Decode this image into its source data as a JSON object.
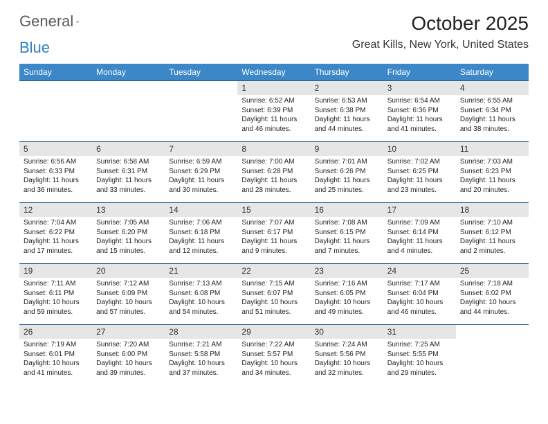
{
  "logo": {
    "text_general": "General",
    "text_blue": "Blue"
  },
  "title": "October 2025",
  "location": "Great Kills, New York, United States",
  "colors": {
    "header_bg": "#3b87c8",
    "header_text": "#ffffff",
    "date_bg": "#e6e6e6",
    "border": "#2b5f8f",
    "body_text": "#222222"
  },
  "day_headers": [
    "Sunday",
    "Monday",
    "Tuesday",
    "Wednesday",
    "Thursday",
    "Friday",
    "Saturday"
  ],
  "weeks": [
    [
      {
        "n": "",
        "sunrise": "",
        "sunset": "",
        "daylight": ""
      },
      {
        "n": "",
        "sunrise": "",
        "sunset": "",
        "daylight": ""
      },
      {
        "n": "",
        "sunrise": "",
        "sunset": "",
        "daylight": ""
      },
      {
        "n": "1",
        "sunrise": "Sunrise: 6:52 AM",
        "sunset": "Sunset: 6:39 PM",
        "daylight": "Daylight: 11 hours and 46 minutes."
      },
      {
        "n": "2",
        "sunrise": "Sunrise: 6:53 AM",
        "sunset": "Sunset: 6:38 PM",
        "daylight": "Daylight: 11 hours and 44 minutes."
      },
      {
        "n": "3",
        "sunrise": "Sunrise: 6:54 AM",
        "sunset": "Sunset: 6:36 PM",
        "daylight": "Daylight: 11 hours and 41 minutes."
      },
      {
        "n": "4",
        "sunrise": "Sunrise: 6:55 AM",
        "sunset": "Sunset: 6:34 PM",
        "daylight": "Daylight: 11 hours and 38 minutes."
      }
    ],
    [
      {
        "n": "5",
        "sunrise": "Sunrise: 6:56 AM",
        "sunset": "Sunset: 6:33 PM",
        "daylight": "Daylight: 11 hours and 36 minutes."
      },
      {
        "n": "6",
        "sunrise": "Sunrise: 6:58 AM",
        "sunset": "Sunset: 6:31 PM",
        "daylight": "Daylight: 11 hours and 33 minutes."
      },
      {
        "n": "7",
        "sunrise": "Sunrise: 6:59 AM",
        "sunset": "Sunset: 6:29 PM",
        "daylight": "Daylight: 11 hours and 30 minutes."
      },
      {
        "n": "8",
        "sunrise": "Sunrise: 7:00 AM",
        "sunset": "Sunset: 6:28 PM",
        "daylight": "Daylight: 11 hours and 28 minutes."
      },
      {
        "n": "9",
        "sunrise": "Sunrise: 7:01 AM",
        "sunset": "Sunset: 6:26 PM",
        "daylight": "Daylight: 11 hours and 25 minutes."
      },
      {
        "n": "10",
        "sunrise": "Sunrise: 7:02 AM",
        "sunset": "Sunset: 6:25 PM",
        "daylight": "Daylight: 11 hours and 23 minutes."
      },
      {
        "n": "11",
        "sunrise": "Sunrise: 7:03 AM",
        "sunset": "Sunset: 6:23 PM",
        "daylight": "Daylight: 11 hours and 20 minutes."
      }
    ],
    [
      {
        "n": "12",
        "sunrise": "Sunrise: 7:04 AM",
        "sunset": "Sunset: 6:22 PM",
        "daylight": "Daylight: 11 hours and 17 minutes."
      },
      {
        "n": "13",
        "sunrise": "Sunrise: 7:05 AM",
        "sunset": "Sunset: 6:20 PM",
        "daylight": "Daylight: 11 hours and 15 minutes."
      },
      {
        "n": "14",
        "sunrise": "Sunrise: 7:06 AM",
        "sunset": "Sunset: 6:18 PM",
        "daylight": "Daylight: 11 hours and 12 minutes."
      },
      {
        "n": "15",
        "sunrise": "Sunrise: 7:07 AM",
        "sunset": "Sunset: 6:17 PM",
        "daylight": "Daylight: 11 hours and 9 minutes."
      },
      {
        "n": "16",
        "sunrise": "Sunrise: 7:08 AM",
        "sunset": "Sunset: 6:15 PM",
        "daylight": "Daylight: 11 hours and 7 minutes."
      },
      {
        "n": "17",
        "sunrise": "Sunrise: 7:09 AM",
        "sunset": "Sunset: 6:14 PM",
        "daylight": "Daylight: 11 hours and 4 minutes."
      },
      {
        "n": "18",
        "sunrise": "Sunrise: 7:10 AM",
        "sunset": "Sunset: 6:12 PM",
        "daylight": "Daylight: 11 hours and 2 minutes."
      }
    ],
    [
      {
        "n": "19",
        "sunrise": "Sunrise: 7:11 AM",
        "sunset": "Sunset: 6:11 PM",
        "daylight": "Daylight: 10 hours and 59 minutes."
      },
      {
        "n": "20",
        "sunrise": "Sunrise: 7:12 AM",
        "sunset": "Sunset: 6:09 PM",
        "daylight": "Daylight: 10 hours and 57 minutes."
      },
      {
        "n": "21",
        "sunrise": "Sunrise: 7:13 AM",
        "sunset": "Sunset: 6:08 PM",
        "daylight": "Daylight: 10 hours and 54 minutes."
      },
      {
        "n": "22",
        "sunrise": "Sunrise: 7:15 AM",
        "sunset": "Sunset: 6:07 PM",
        "daylight": "Daylight: 10 hours and 51 minutes."
      },
      {
        "n": "23",
        "sunrise": "Sunrise: 7:16 AM",
        "sunset": "Sunset: 6:05 PM",
        "daylight": "Daylight: 10 hours and 49 minutes."
      },
      {
        "n": "24",
        "sunrise": "Sunrise: 7:17 AM",
        "sunset": "Sunset: 6:04 PM",
        "daylight": "Daylight: 10 hours and 46 minutes."
      },
      {
        "n": "25",
        "sunrise": "Sunrise: 7:18 AM",
        "sunset": "Sunset: 6:02 PM",
        "daylight": "Daylight: 10 hours and 44 minutes."
      }
    ],
    [
      {
        "n": "26",
        "sunrise": "Sunrise: 7:19 AM",
        "sunset": "Sunset: 6:01 PM",
        "daylight": "Daylight: 10 hours and 41 minutes."
      },
      {
        "n": "27",
        "sunrise": "Sunrise: 7:20 AM",
        "sunset": "Sunset: 6:00 PM",
        "daylight": "Daylight: 10 hours and 39 minutes."
      },
      {
        "n": "28",
        "sunrise": "Sunrise: 7:21 AM",
        "sunset": "Sunset: 5:58 PM",
        "daylight": "Daylight: 10 hours and 37 minutes."
      },
      {
        "n": "29",
        "sunrise": "Sunrise: 7:22 AM",
        "sunset": "Sunset: 5:57 PM",
        "daylight": "Daylight: 10 hours and 34 minutes."
      },
      {
        "n": "30",
        "sunrise": "Sunrise: 7:24 AM",
        "sunset": "Sunset: 5:56 PM",
        "daylight": "Daylight: 10 hours and 32 minutes."
      },
      {
        "n": "31",
        "sunrise": "Sunrise: 7:25 AM",
        "sunset": "Sunset: 5:55 PM",
        "daylight": "Daylight: 10 hours and 29 minutes."
      },
      {
        "n": "",
        "sunrise": "",
        "sunset": "",
        "daylight": ""
      }
    ]
  ]
}
